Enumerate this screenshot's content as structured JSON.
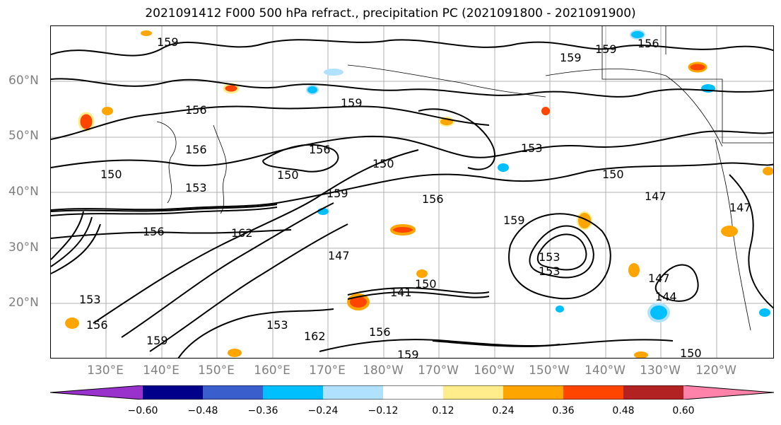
{
  "title": "2021091412 F000 500 hPa refract., precipitation PC (2021091800 - 2021091900)",
  "lat_labels": [
    "60°N",
    "50°N",
    "40°N",
    "30°N",
    "20°N"
  ],
  "lon_labels": [
    "130°E",
    "140°E",
    "150°E",
    "160°E",
    "170°E",
    "180°W",
    "170°W",
    "160°W",
    "150°W",
    "140°W",
    "130°W",
    "120°W"
  ],
  "contour_labels": [
    "159",
    "156",
    "159",
    "159",
    "156",
    "159",
    "153",
    "156",
    "150",
    "153",
    "150",
    "156",
    "159",
    "156",
    "159",
    "147",
    "150",
    "162",
    "156",
    "147",
    "150",
    "141",
    "156",
    "153",
    "144",
    "147",
    "150",
    "153",
    "156",
    "159",
    "162",
    "153",
    "150",
    "159",
    "147",
    "153"
  ],
  "colorbar": {
    "ticks": [
      "−0.60",
      "−0.48",
      "−0.36",
      "−0.24",
      "−0.12",
      "0.12",
      "0.24",
      "0.36",
      "0.48",
      "0.60"
    ],
    "colors": [
      "#9932cc",
      "#00008b",
      "#3a5fcd",
      "#00bfff",
      "#b0e2ff",
      "#ffffff",
      "#ffec8b",
      "#ffa500",
      "#ff4500",
      "#b22222",
      "#ff82ab"
    ]
  }
}
